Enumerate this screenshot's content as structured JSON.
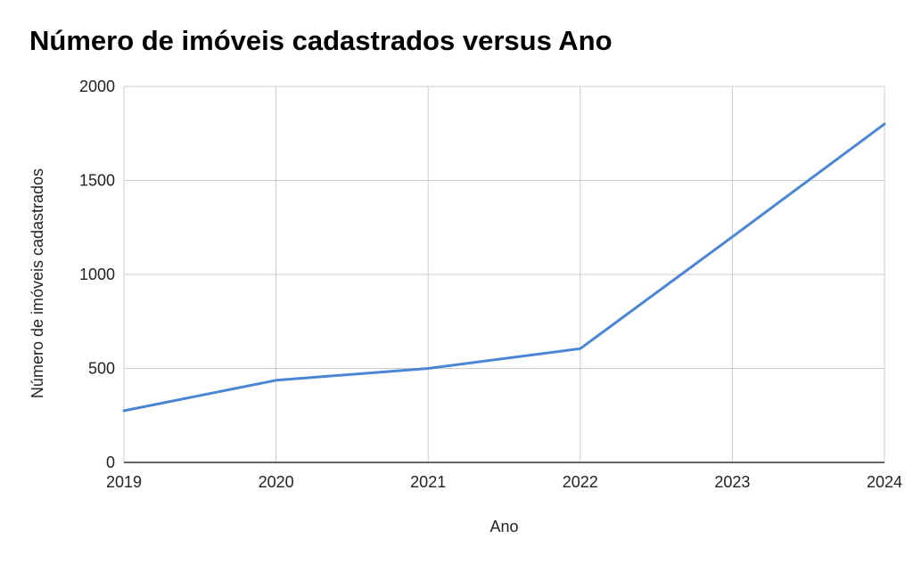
{
  "chart_data": {
    "type": "line",
    "title": "Número de imóveis cadastrados versus Ano",
    "xlabel": "Ano",
    "ylabel": "Número de imóveis cadastrados",
    "x": [
      2019,
      2020,
      2021,
      2022,
      2023,
      2024
    ],
    "series": [
      {
        "values": [
          275,
          437,
          500,
          605,
          1200,
          1800
        ]
      }
    ],
    "ylim": [
      0,
      2000
    ],
    "yticks": [
      "0",
      "500",
      "1000",
      "1500",
      "2000"
    ],
    "xticks": [
      "2019",
      "2020",
      "2021",
      "2022",
      "2023",
      "2024"
    ],
    "grid": true,
    "legend": "none",
    "colors": {
      "line": "#4a86d4",
      "grid": "#cccccc",
      "axis": "#333333"
    }
  }
}
